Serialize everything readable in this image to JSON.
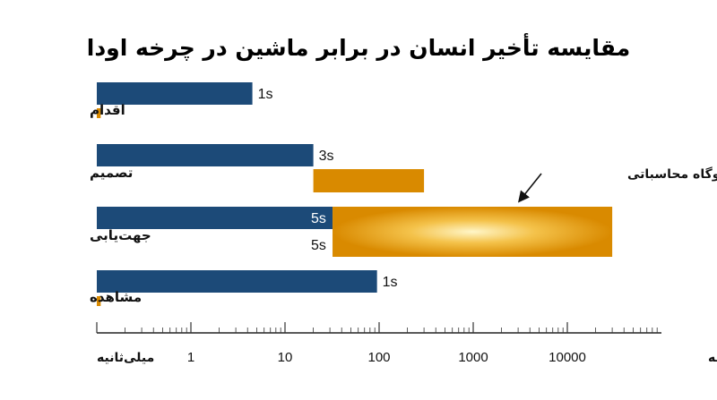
{
  "chart_data": {
    "type": "bar",
    "orientation": "horizontal",
    "title": "مقایسه تأخیر انسان در برابر ماشین در چرخه اودا",
    "xscale": "log",
    "xlim": [
      0.1,
      100000
    ],
    "x_ticks": [
      {
        "value": 1,
        "label": "1"
      },
      {
        "value": 10,
        "label": "10"
      },
      {
        "value": 100,
        "label": "100"
      },
      {
        "value": 1000,
        "label": "1000"
      },
      {
        "value": 10000,
        "label": "10000"
      }
    ],
    "x_unit_left": "میلی‌ثانیه",
    "x_unit_right": "ثانیه/دقیقه",
    "categories": [
      "اقدام",
      "تصمیم",
      "جهت‌یابی",
      "مشاهده"
    ],
    "series": [
      {
        "color": "#1c4a78",
        "values": [
          {
            "start": 0.1,
            "end": 4.5,
            "label": "1s"
          },
          {
            "start": 0.1,
            "end": 20,
            "label": "3s"
          },
          {
            "start": 0.1,
            "end": 32,
            "label": "5s"
          },
          {
            "start": 0.1,
            "end": 95,
            "label": "1s"
          }
        ]
      },
      {
        "color": "#d98a00",
        "values": [
          {
            "start": 0.1,
            "end": 0.11,
            "label": ""
          },
          {
            "start": 20,
            "end": 300,
            "label": ""
          },
          {
            "start": 32,
            "end": 30000,
            "label": "5s"
          },
          {
            "start": 0.1,
            "end": 0.11,
            "label": ""
          }
        ]
      }
    ],
    "annotation": {
      "text": "گلوگاه محاسباتی",
      "target_category": "جهت‌یابی"
    },
    "grid": false,
    "legend": "none"
  }
}
